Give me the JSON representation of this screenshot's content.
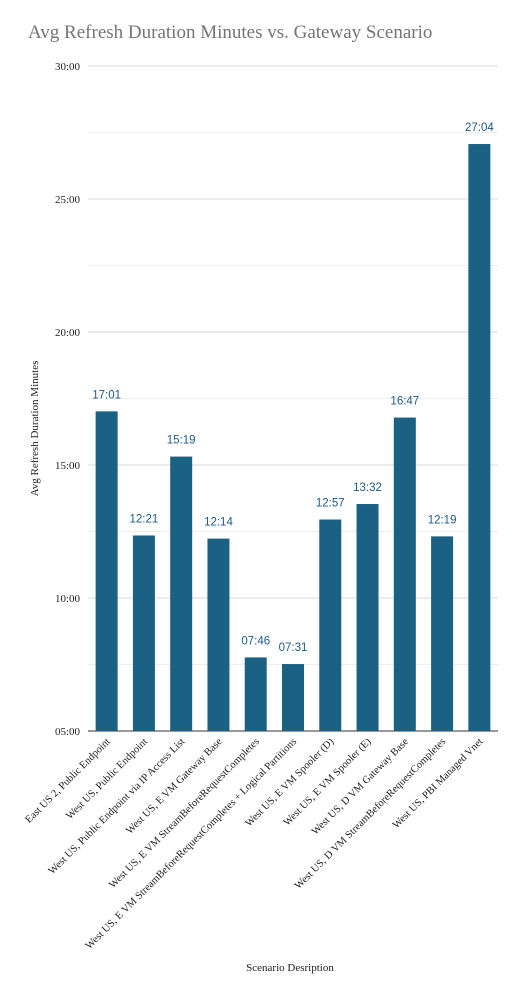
{
  "chart_data": {
    "type": "bar",
    "title": "Avg Refresh Duration Minutes vs. Gateway Scenario",
    "xlabel": "Scenario Desription",
    "ylabel": "Avg Refresh Duration Minutes",
    "ylim": [
      5,
      30
    ],
    "yticks": [
      {
        "value": 5,
        "label": "05:00"
      },
      {
        "value": 10,
        "label": "10:00"
      },
      {
        "value": 15,
        "label": "15:00"
      },
      {
        "value": 20,
        "label": "20:00"
      },
      {
        "value": 25,
        "label": "25:00"
      },
      {
        "value": 30,
        "label": "30:00"
      }
    ],
    "grid": true,
    "bar_color": "#1b6183",
    "label_color": "#1e5b8a",
    "categories": [
      "East US 2, Public Endpoint",
      "West US, Public Endpoint",
      "West US, Public Endpoint via IP Access List",
      "West US, E VM Gateway Base",
      "West US, E VM StreamBeforeRequestCompletes",
      "West US, E VM StreamBeforeRequestCompletes + Logical Partitions",
      "West US, E VM Spooler (D)",
      "West US, E VM Spooler (E)",
      "West US, D VM Gateway Base",
      "West US, D VM StreamBeforeRequestCompletes",
      "West US, PBI Managed Vnet"
    ],
    "values": [
      17.0167,
      12.35,
      15.3167,
      12.2333,
      7.7667,
      7.5167,
      12.95,
      13.5333,
      16.7833,
      12.3167,
      27.0667
    ],
    "value_labels": [
      "17:01",
      "12:21",
      "15:19",
      "12:14",
      "07:46",
      "07:31",
      "12:57",
      "13:32",
      "16:47",
      "12:19",
      "27:04"
    ]
  }
}
